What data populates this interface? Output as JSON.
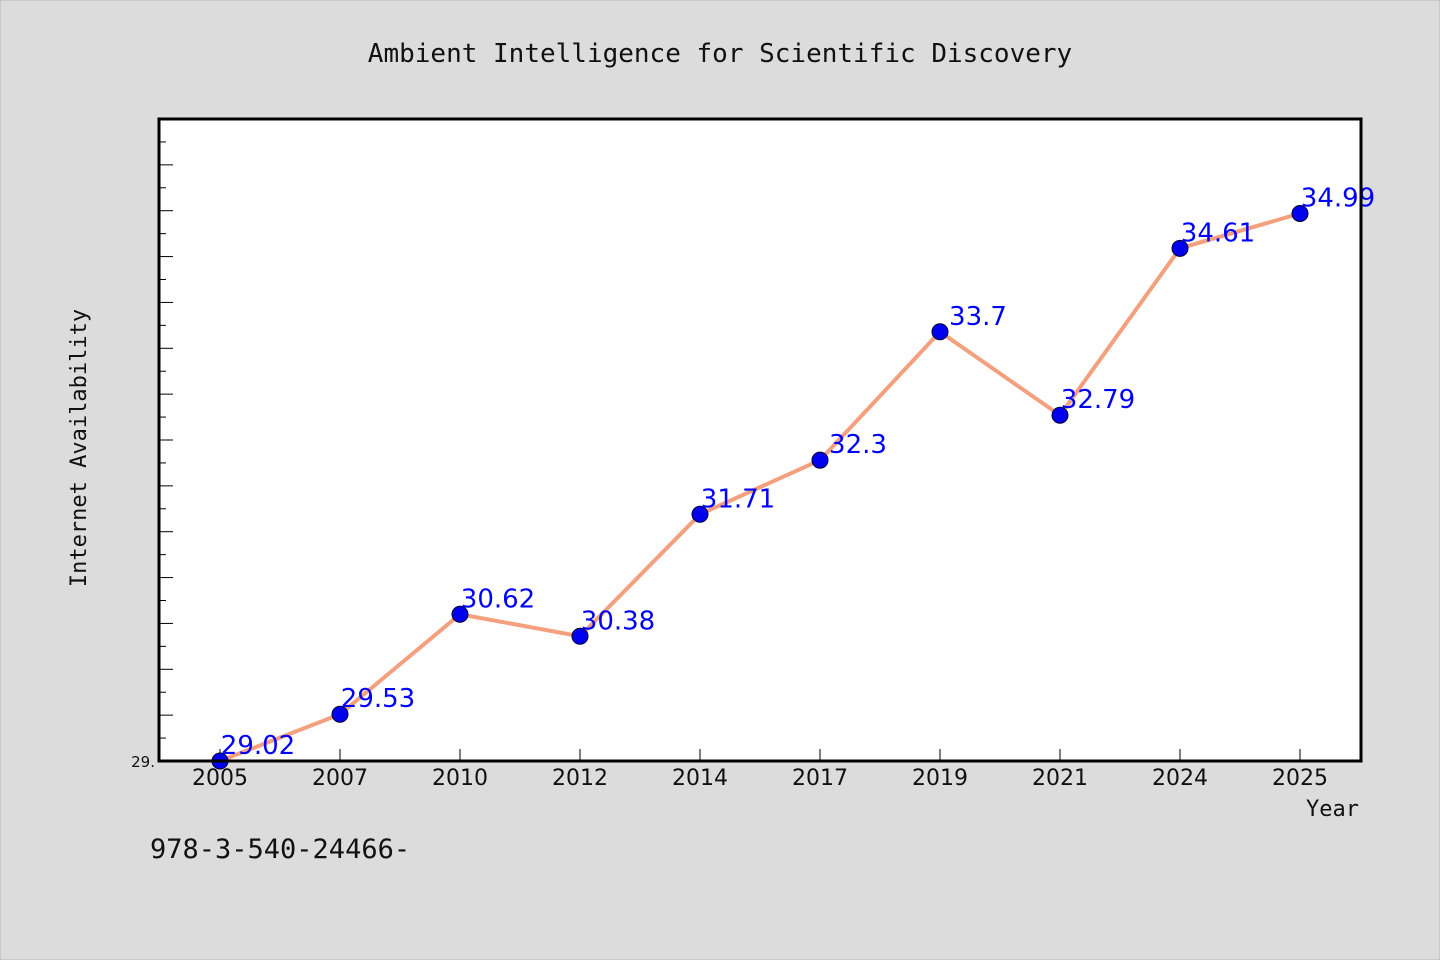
{
  "chart_data": {
    "type": "line",
    "title": "Ambient Intelligence for Scientific Discovery",
    "xlabel": "Year",
    "ylabel": "Internet Availability",
    "categories": [
      "2005",
      "2007",
      "2010",
      "2012",
      "2014",
      "2017",
      "2019",
      "2021",
      "2024",
      "2025"
    ],
    "series": [
      {
        "values": [
          29.02,
          29.53,
          30.62,
          30.38,
          31.71,
          32.3,
          33.7,
          32.79,
          34.61,
          34.99
        ],
        "data_labels": [
          "29.02",
          "29.53",
          "30.62",
          "30.38",
          "31.71",
          "32.3",
          "33.7",
          "32.79",
          "34.61",
          "34.99"
        ]
      }
    ],
    "ylim": [
      29.02,
      36.02
    ],
    "ytick_labels": [
      "29."
    ],
    "grid": false,
    "legend": "none",
    "colors": {
      "line": "#f4a07e",
      "marker": "#0000ee",
      "data_label": "#0000ff",
      "background": "#dcdcdc",
      "plot_background": "#ffffff"
    }
  },
  "footer_text": "978-3-540-24466-"
}
